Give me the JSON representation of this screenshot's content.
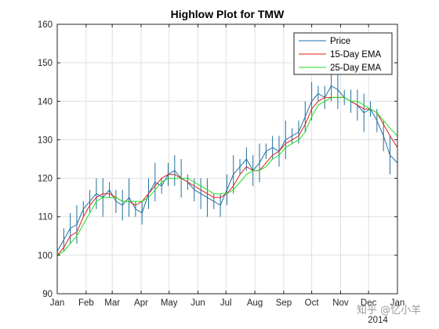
{
  "chart_data": {
    "type": "line",
    "title": "Highlow Plot for TMW",
    "xlabel": "",
    "ylabel": "",
    "ylim": [
      90,
      160
    ],
    "yticks": [
      90,
      100,
      110,
      120,
      130,
      140,
      150,
      160
    ],
    "xlim": [
      0,
      365
    ],
    "xtick_positions": [
      0,
      31,
      59,
      90,
      120,
      151,
      181,
      212,
      243,
      273,
      304,
      334,
      365
    ],
    "xtick_labels": [
      "Jan",
      "Feb",
      "Mar",
      "Apr",
      "May",
      "Jun",
      "Jul",
      "Aug",
      "Sep",
      "Oct",
      "Nov",
      "Dec",
      "Jan"
    ],
    "xtick_sublabel": "2014",
    "grid": true,
    "legend": {
      "placement": "top-right",
      "entries": [
        "Price",
        "15-Day EMA",
        "25-Day EMA"
      ]
    },
    "colors": {
      "price": "#1f6fa0",
      "ema15": "#e0201b",
      "ema25": "#1ee01e"
    },
    "series": [
      {
        "name": "Price",
        "x": [
          0,
          7,
          14,
          21,
          28,
          35,
          42,
          49,
          56,
          63,
          70,
          77,
          84,
          91,
          98,
          105,
          112,
          119,
          126,
          133,
          140,
          147,
          154,
          161,
          168,
          175,
          182,
          189,
          196,
          203,
          210,
          217,
          224,
          231,
          238,
          245,
          252,
          259,
          266,
          273,
          280,
          287,
          294,
          301,
          308,
          315,
          322,
          329,
          336,
          343,
          350,
          357,
          365
        ],
        "values": [
          101,
          104,
          107,
          108,
          112,
          114,
          116,
          115,
          117,
          114,
          113,
          115,
          112,
          111,
          116,
          119,
          118,
          121,
          122,
          120,
          119,
          117,
          116,
          115,
          114,
          113,
          117,
          121,
          123,
          125,
          122,
          124,
          127,
          128,
          127,
          130,
          131,
          132,
          136,
          140,
          142,
          141,
          144,
          143,
          141,
          140,
          139,
          137,
          138,
          135,
          131,
          126,
          124
        ]
      },
      {
        "name": "15-Day EMA",
        "x": [
          0,
          7,
          14,
          21,
          28,
          35,
          42,
          49,
          56,
          63,
          70,
          77,
          84,
          91,
          98,
          105,
          112,
          119,
          126,
          133,
          140,
          147,
          154,
          161,
          168,
          175,
          182,
          189,
          196,
          203,
          210,
          217,
          224,
          231,
          238,
          245,
          252,
          259,
          266,
          273,
          280,
          287,
          294,
          301,
          308,
          315,
          322,
          329,
          336,
          343,
          350,
          357,
          365
        ],
        "values": [
          100,
          102,
          105,
          106,
          110,
          113,
          115,
          116,
          116,
          115,
          114,
          114,
          113,
          114,
          116,
          118,
          120,
          121,
          121,
          120,
          119,
          118,
          117,
          116,
          115,
          115,
          116,
          118,
          121,
          123,
          122,
          122,
          124,
          126,
          127,
          129,
          130,
          131,
          134,
          138,
          140,
          141,
          141,
          141,
          141,
          140,
          139,
          138,
          138,
          137,
          134,
          131,
          128
        ]
      },
      {
        "name": "25-Day EMA",
        "x": [
          0,
          7,
          14,
          21,
          28,
          35,
          42,
          49,
          56,
          63,
          70,
          77,
          84,
          91,
          98,
          105,
          112,
          119,
          126,
          133,
          140,
          147,
          154,
          161,
          168,
          175,
          182,
          189,
          196,
          203,
          210,
          217,
          224,
          231,
          238,
          245,
          252,
          259,
          266,
          273,
          280,
          287,
          294,
          301,
          308,
          315,
          322,
          329,
          336,
          343,
          350,
          357,
          365
        ],
        "values": [
          100,
          101,
          103,
          105,
          108,
          111,
          114,
          115,
          115,
          115,
          114,
          114,
          114,
          114,
          115,
          117,
          119,
          120,
          120,
          120,
          120,
          119,
          118,
          117,
          116,
          116,
          116,
          117,
          119,
          121,
          122,
          122,
          123,
          125,
          126,
          128,
          129,
          130,
          132,
          136,
          139,
          140,
          141,
          141,
          141,
          140,
          140,
          139,
          138,
          137,
          135,
          133,
          131
        ]
      }
    ]
  },
  "watermark_text": "知乎 @忆小羊"
}
